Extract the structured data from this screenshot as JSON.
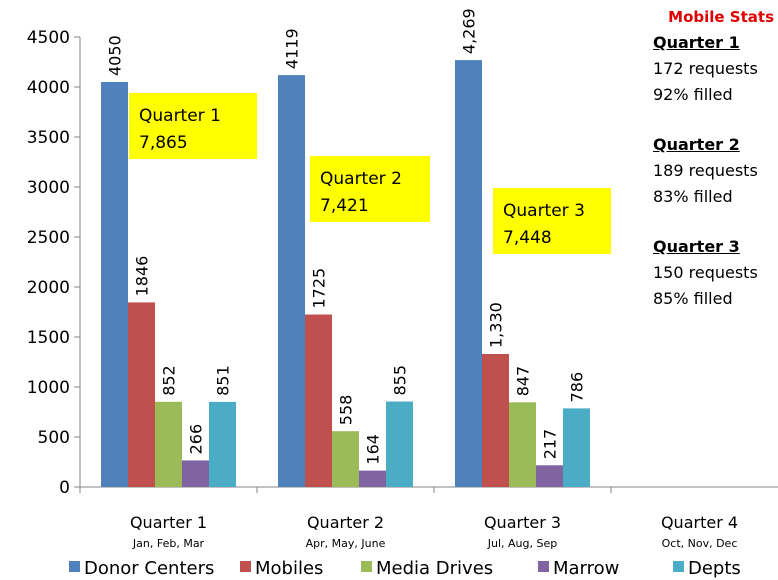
{
  "chart_data": {
    "type": "bar",
    "categories": [
      "Quarter 1",
      "Quarter 2",
      "Quarter 3",
      "Quarter 4"
    ],
    "category_sublabels": [
      "Jan, Feb, Mar",
      "Apr, May, June",
      "Jul, Aug, Sep",
      "Oct, Nov, Dec"
    ],
    "series": [
      {
        "name": "Donor Centers",
        "color": "#4f81bd",
        "values": [
          4050,
          4119,
          4269,
          null
        ],
        "labels": [
          "4050",
          "4119",
          "4,269",
          ""
        ]
      },
      {
        "name": "Mobiles",
        "color": "#c0504d",
        "values": [
          1846,
          1725,
          1330,
          null
        ],
        "labels": [
          "1846",
          "1725",
          "1,330",
          ""
        ]
      },
      {
        "name": "Media Drives",
        "color": "#9bbb59",
        "values": [
          852,
          558,
          847,
          null
        ],
        "labels": [
          "852",
          "558",
          "847",
          ""
        ]
      },
      {
        "name": "Marrow",
        "color": "#8064a2",
        "values": [
          266,
          164,
          217,
          null
        ],
        "labels": [
          "266",
          "164",
          "217",
          ""
        ]
      },
      {
        "name": "Depts",
        "color": "#4bacc6",
        "values": [
          851,
          855,
          786,
          null
        ],
        "labels": [
          "851",
          "855",
          "786",
          ""
        ]
      }
    ],
    "ylim": [
      0,
      4500
    ],
    "yticks": [
      "0",
      "500",
      "1000",
      "1500",
      "2000",
      "2500",
      "3000",
      "3500",
      "4000",
      "4500"
    ],
    "legend_position": "bottom",
    "grid": false,
    "annotations": [
      {
        "line1": "Quarter 1",
        "line2": "7,865",
        "color": "#ffff00"
      },
      {
        "line1": "Quarter 2",
        "line2": "7,421",
        "color": "#ffff00"
      },
      {
        "line1": "Quarter 3",
        "line2": "7,448",
        "color": "#ffff00"
      }
    ]
  },
  "side_panel": {
    "title": "Mobile Stats",
    "quarters": [
      {
        "heading": "Quarter 1",
        "requests": "172 requests",
        "filled": "92% filled"
      },
      {
        "heading": "Quarter 2",
        "requests": "189 requests",
        "filled": "83% filled"
      },
      {
        "heading": "Quarter 3",
        "requests": "150 requests",
        "filled": "85% filled"
      }
    ]
  }
}
